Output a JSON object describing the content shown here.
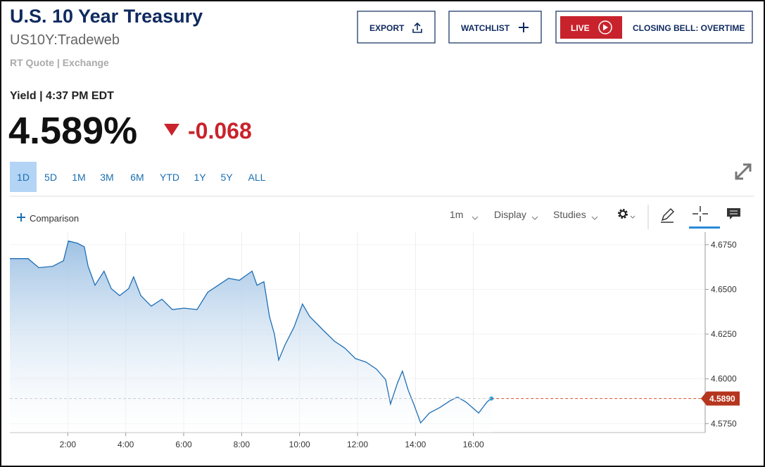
{
  "header": {
    "title": "U.S. 10 Year Treasury",
    "symbol": "US10Y:Tradeweb",
    "quote_source": "RT Quote | Exchange"
  },
  "buttons": {
    "export": "EXPORT",
    "watchlist": "WATCHLIST",
    "live": "LIVE",
    "program": "CLOSING BELL: OVERTIME"
  },
  "quote": {
    "label": "Yield | 4:37 PM EDT",
    "price": "4.589%",
    "change": "-0.068"
  },
  "ranges": [
    "1D",
    "5D",
    "1M",
    "3M",
    "6M",
    "YTD",
    "1Y",
    "5Y",
    "ALL"
  ],
  "active_range": 0,
  "toolbar": {
    "comparison": "Comparison",
    "interval": "1m",
    "display": "Display",
    "studies": "Studies"
  },
  "chart_data": {
    "type": "area",
    "color": "#1f6fb5",
    "grid": true,
    "x": [
      0,
      0.63,
      1.0,
      1.48,
      1.85,
      2.02,
      2.33,
      2.57,
      2.7,
      2.94,
      3.25,
      3.5,
      3.79,
      4.1,
      4.27,
      4.52,
      4.88,
      5.25,
      5.61,
      6.02,
      6.46,
      6.83,
      7.19,
      7.55,
      7.92,
      8.36,
      8.53,
      8.77,
      8.96,
      9.13,
      9.28,
      9.5,
      9.81,
      10.1,
      10.35,
      10.59,
      10.83,
      11.2,
      11.56,
      11.93,
      12.29,
      12.65,
      12.97,
      13.14,
      13.38,
      13.55,
      13.75,
      13.94,
      14.18,
      14.48,
      14.84,
      15.21,
      15.45,
      15.74,
      16.18,
      16.47,
      16.62
    ],
    "values": [
      4.6672,
      4.6672,
      4.6621,
      4.6629,
      4.666,
      4.677,
      4.6758,
      4.6738,
      4.6629,
      4.6523,
      4.6602,
      4.6504,
      4.6465,
      4.6504,
      4.657,
      4.6465,
      4.6406,
      4.6445,
      4.6387,
      4.6395,
      4.6387,
      4.6484,
      4.6523,
      4.6562,
      4.6551,
      4.6602,
      4.6523,
      4.6543,
      4.6348,
      4.625,
      4.6105,
      4.6191,
      4.6289,
      4.6418,
      4.6348,
      4.6309,
      4.627,
      4.6211,
      4.6172,
      4.6113,
      4.6094,
      4.6055,
      4.5996,
      4.5859,
      4.5977,
      4.6043,
      4.5937,
      4.5859,
      4.5754,
      4.5809,
      4.584,
      4.5879,
      4.5898,
      4.5871,
      4.5809,
      4.5871,
      4.589
    ],
    "xlim": [
      0,
      24
    ],
    "xticks": [
      {
        "value": 2,
        "label": "2:00"
      },
      {
        "value": 4,
        "label": "4:00"
      },
      {
        "value": 6,
        "label": "6:00"
      },
      {
        "value": 8,
        "label": "8:00"
      },
      {
        "value": 10,
        "label": "10:00"
      },
      {
        "value": 12,
        "label": "12:00"
      },
      {
        "value": 14,
        "label": "14:00"
      },
      {
        "value": 16,
        "label": "16:00"
      }
    ],
    "ylim": [
      4.57,
      4.682
    ],
    "yticks": [
      {
        "value": 4.575,
        "label": "4.5750"
      },
      {
        "value": 4.6,
        "label": "4.6000"
      },
      {
        "value": 4.625,
        "label": "4.6250"
      },
      {
        "value": 4.65,
        "label": "4.6500"
      },
      {
        "value": 4.675,
        "label": "4.6750"
      }
    ],
    "last_label": {
      "value": 4.589,
      "label": "4.5890"
    }
  }
}
